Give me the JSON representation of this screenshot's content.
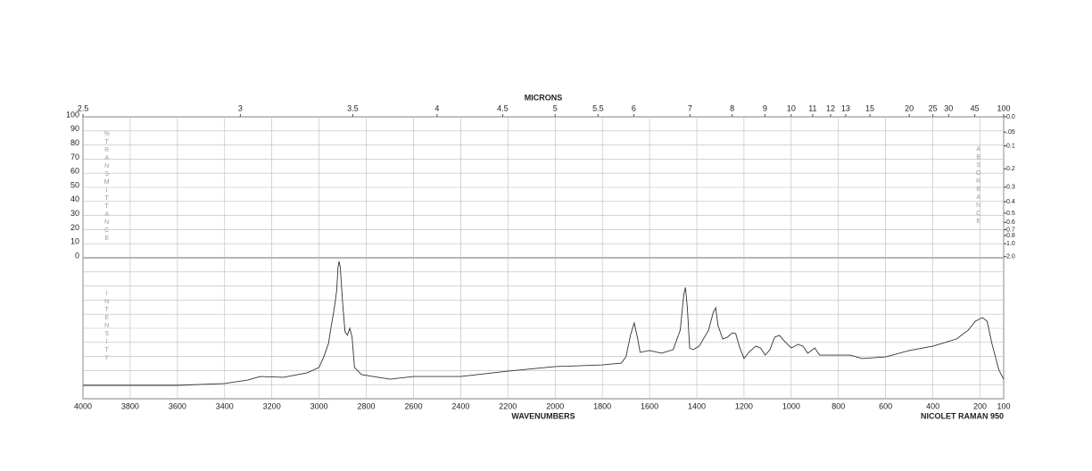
{
  "chart_data": {
    "type": "line",
    "x_label": "WAVENUMBERS",
    "x2_label": "MICRONS",
    "instrument": "NICOLET RAMAN 950",
    "y_label": "%TRANSMITTANCE",
    "y2_label": "ABSORBANCE",
    "intensity_label": "INTENSITY",
    "xlim": [
      4000,
      100
    ],
    "xticks": [
      4000,
      3800,
      3600,
      3400,
      3200,
      3000,
      2800,
      2600,
      2400,
      2200,
      2000,
      1800,
      1600,
      1400,
      1200,
      1000,
      800,
      600,
      400,
      200,
      100
    ],
    "x2scale": "microns",
    "x2ticks": [
      2.5,
      3,
      3.5,
      4,
      4.5,
      5,
      5.5,
      6,
      7,
      8,
      9,
      10,
      11,
      12,
      13,
      15,
      20,
      25,
      30,
      45,
      100
    ],
    "ylim": [
      0,
      100
    ],
    "yticks": [
      0,
      10,
      20,
      30,
      40,
      50,
      60,
      70,
      80,
      90,
      100
    ],
    "y2scale": "absorbance",
    "y2ticks": [
      {
        "value": 0,
        "label": "0.0"
      },
      {
        "value": 0.05,
        "label": ".05"
      },
      0.1,
      0.2,
      0.3,
      0.4,
      0.5,
      0.6,
      0.7,
      0.8,
      {
        "value": 1,
        "label": "1.0"
      },
      {
        "value": 2,
        "label": "2.0"
      }
    ],
    "intensity_lim": [
      0,
      100
    ],
    "grid": true,
    "color": "#333333",
    "x": [
      4000,
      3600,
      3400,
      3300,
      3250,
      3150,
      3050,
      3000,
      2980,
      2960,
      2945,
      2935,
      2925,
      2920,
      2915,
      2910,
      2900,
      2890,
      2880,
      2870,
      2860,
      2850,
      2820,
      2700,
      2600,
      2400,
      2200,
      2000,
      1800,
      1720,
      1700,
      1680,
      1665,
      1650,
      1640,
      1600,
      1550,
      1500,
      1470,
      1455,
      1448,
      1440,
      1430,
      1415,
      1390,
      1350,
      1330,
      1320,
      1310,
      1290,
      1270,
      1250,
      1235,
      1220,
      1200,
      1180,
      1150,
      1130,
      1110,
      1090,
      1070,
      1050,
      1030,
      1000,
      970,
      950,
      930,
      900,
      880,
      800,
      750,
      700,
      600,
      500,
      400,
      300,
      250,
      220,
      190,
      170,
      150,
      120,
      100
    ],
    "values": [
      9.5,
      9.5,
      10.8,
      13.3,
      15.8,
      15.2,
      18.4,
      22.2,
      29.7,
      39.2,
      55,
      64.6,
      77.2,
      93,
      97.5,
      93,
      67.7,
      47.5,
      45,
      50,
      43.7,
      22.2,
      17.1,
      13.9,
      15.8,
      15.8,
      19.6,
      22.8,
      24,
      25.3,
      29.7,
      45.6,
      53.8,
      42.4,
      32.9,
      34.2,
      32.3,
      34.8,
      48.7,
      74,
      79,
      64.6,
      36,
      34.8,
      37.3,
      48.7,
      61.4,
      64.6,
      51.9,
      42.4,
      43.7,
      46.8,
      46.2,
      37.3,
      28.5,
      32.9,
      37.3,
      36,
      31,
      34.8,
      43.7,
      45,
      41.1,
      36,
      38.6,
      37.3,
      32.3,
      36,
      31,
      31,
      31,
      28.5,
      29.7,
      34.2,
      37.3,
      42.4,
      48.7,
      55,
      57.6,
      55,
      39.2,
      20.3,
      13.9
    ]
  }
}
